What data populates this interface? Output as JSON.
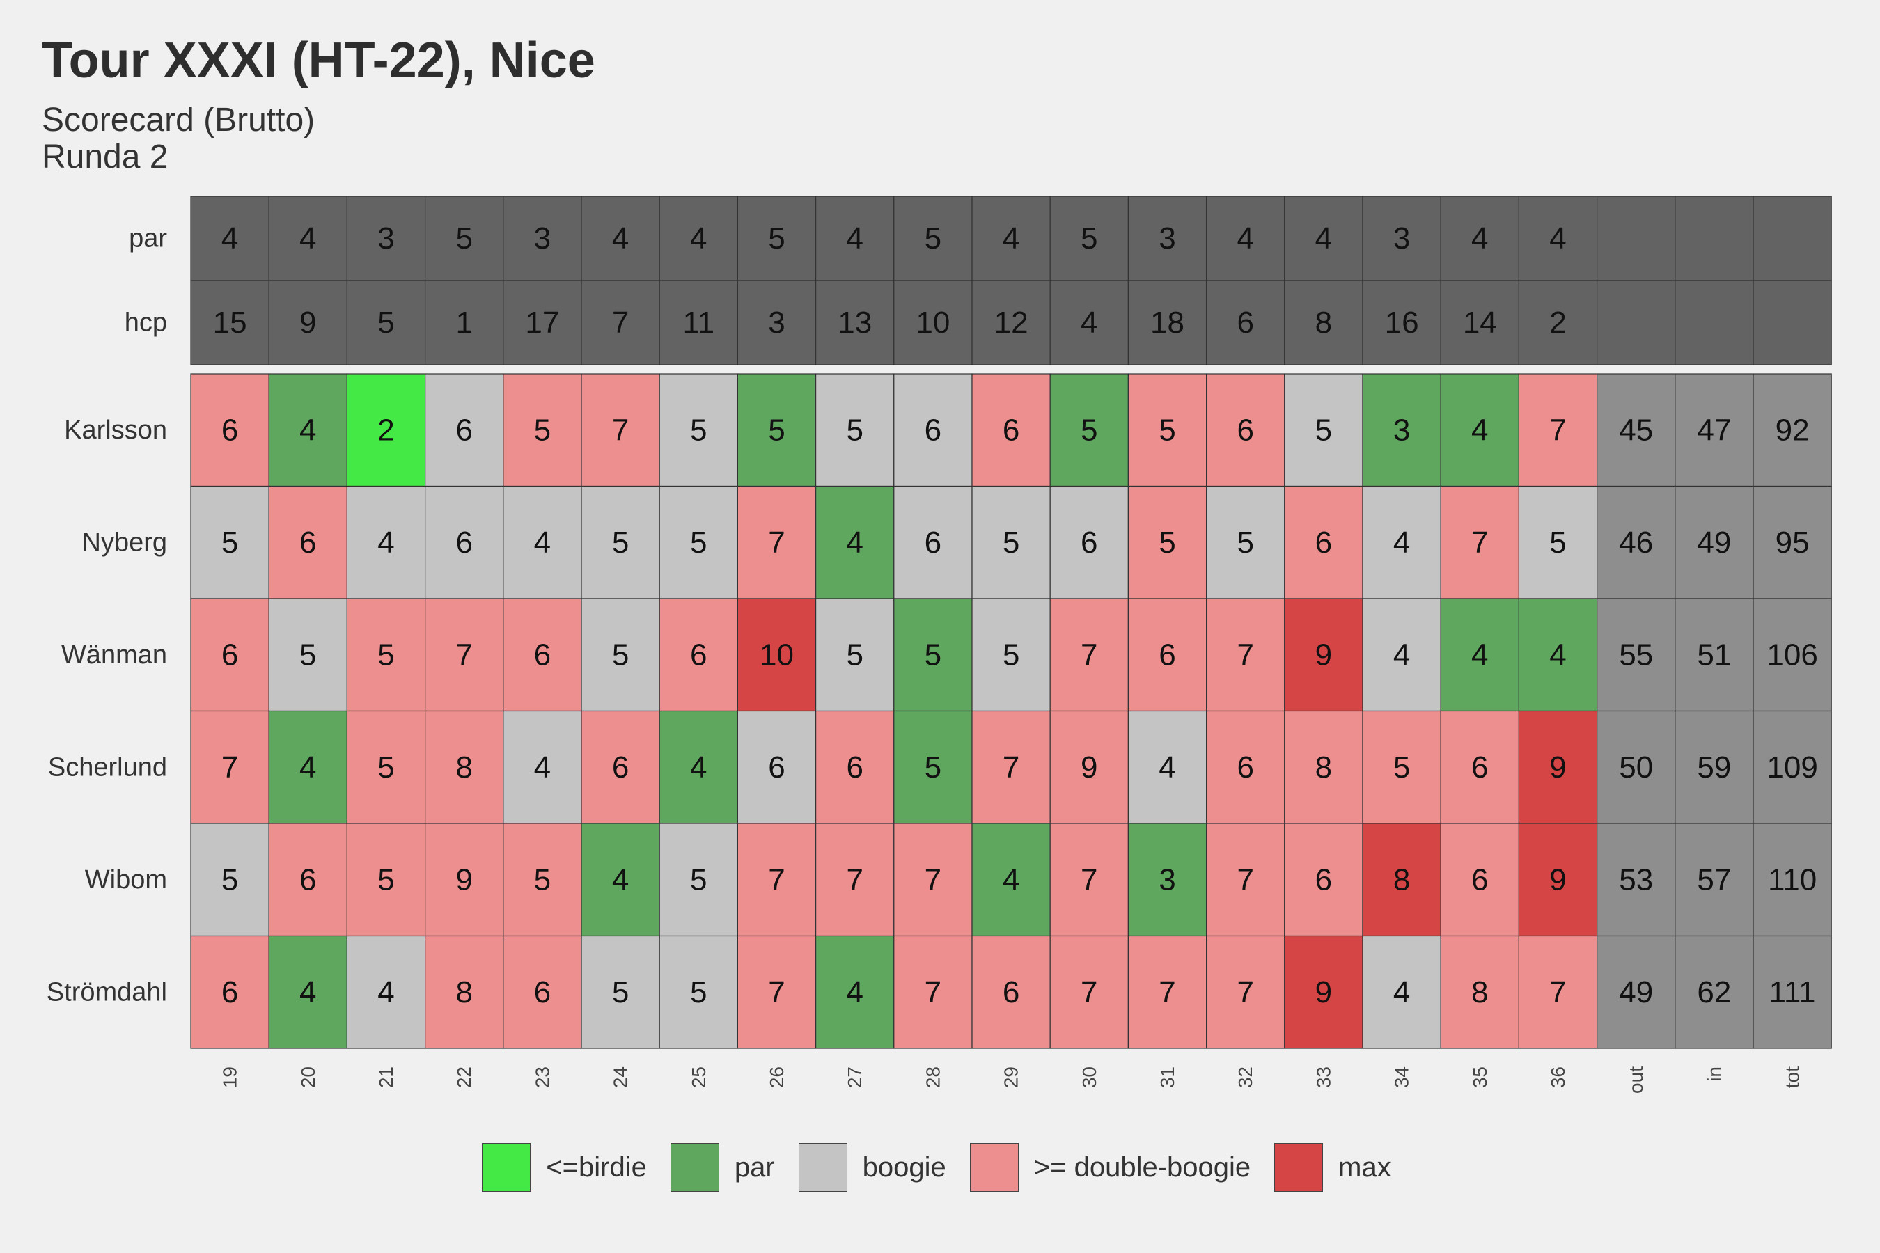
{
  "title": "Tour XXXI (HT-22), Nice",
  "subtitle_1": "Scorecard (Brutto)",
  "subtitle_2": "Runda 2",
  "colors": {
    "background": "#f0f0f0",
    "header_cell": "#636363",
    "total_cell": "#8e8e8e",
    "birdie": "#45e945",
    "par": "#5fa65f",
    "boogie": "#c4c4c4",
    "double_boogie": "#ee8f8f",
    "max": "#d64545"
  },
  "legend": [
    {
      "key": "birdie",
      "label": "<=birdie"
    },
    {
      "key": "par",
      "label": "par"
    },
    {
      "key": "boogie",
      "label": "boogie"
    },
    {
      "key": "double_boogie",
      "label": ">= double-boogie"
    },
    {
      "key": "max",
      "label": "max"
    }
  ],
  "chart_data": {
    "type": "table",
    "columns": [
      "19",
      "20",
      "21",
      "22",
      "23",
      "24",
      "25",
      "26",
      "27",
      "28",
      "29",
      "30",
      "31",
      "32",
      "33",
      "34",
      "35",
      "36",
      "out",
      "in",
      "tot"
    ],
    "header_rows": [
      {
        "label": "par",
        "values": [
          "4",
          "4",
          "3",
          "5",
          "3",
          "4",
          "4",
          "5",
          "4",
          "5",
          "4",
          "5",
          "3",
          "4",
          "4",
          "3",
          "4",
          "4",
          "",
          "",
          ""
        ]
      },
      {
        "label": "hcp",
        "values": [
          "15",
          "9",
          "5",
          "1",
          "17",
          "7",
          "11",
          "3",
          "13",
          "10",
          "12",
          "4",
          "18",
          "6",
          "8",
          "16",
          "14",
          "2",
          "",
          "",
          ""
        ]
      }
    ],
    "players": [
      {
        "name": "Karlsson",
        "scores": [
          6,
          4,
          2,
          6,
          5,
          7,
          5,
          5,
          5,
          6,
          6,
          5,
          5,
          6,
          5,
          3,
          4,
          7
        ],
        "categories": [
          "double_boogie",
          "par",
          "birdie",
          "boogie",
          "double_boogie",
          "double_boogie",
          "boogie",
          "par",
          "boogie",
          "boogie",
          "double_boogie",
          "par",
          "double_boogie",
          "double_boogie",
          "boogie",
          "par",
          "par",
          "double_boogie"
        ],
        "out": 45,
        "in": 47,
        "tot": 92
      },
      {
        "name": "Nyberg",
        "scores": [
          5,
          6,
          4,
          6,
          4,
          5,
          5,
          7,
          4,
          6,
          5,
          6,
          5,
          5,
          6,
          4,
          7,
          5
        ],
        "categories": [
          "boogie",
          "double_boogie",
          "boogie",
          "boogie",
          "boogie",
          "boogie",
          "boogie",
          "double_boogie",
          "par",
          "boogie",
          "boogie",
          "boogie",
          "double_boogie",
          "boogie",
          "double_boogie",
          "boogie",
          "double_boogie",
          "boogie"
        ],
        "out": 46,
        "in": 49,
        "tot": 95
      },
      {
        "name": "Wänman",
        "scores": [
          6,
          5,
          5,
          7,
          6,
          5,
          6,
          10,
          5,
          5,
          5,
          7,
          6,
          7,
          9,
          4,
          4,
          4
        ],
        "categories": [
          "double_boogie",
          "boogie",
          "double_boogie",
          "double_boogie",
          "double_boogie",
          "boogie",
          "double_boogie",
          "max",
          "boogie",
          "par",
          "boogie",
          "double_boogie",
          "double_boogie",
          "double_boogie",
          "max",
          "boogie",
          "par",
          "par"
        ],
        "out": 55,
        "in": 51,
        "tot": 106
      },
      {
        "name": "Scherlund",
        "scores": [
          7,
          4,
          5,
          8,
          4,
          6,
          4,
          6,
          6,
          5,
          7,
          9,
          4,
          6,
          8,
          5,
          6,
          9
        ],
        "categories": [
          "double_boogie",
          "par",
          "double_boogie",
          "double_boogie",
          "boogie",
          "double_boogie",
          "par",
          "boogie",
          "double_boogie",
          "par",
          "double_boogie",
          "double_boogie",
          "boogie",
          "double_boogie",
          "double_boogie",
          "double_boogie",
          "double_boogie",
          "max"
        ],
        "out": 50,
        "in": 59,
        "tot": 109
      },
      {
        "name": "Wibom",
        "scores": [
          5,
          6,
          5,
          9,
          5,
          4,
          5,
          7,
          7,
          7,
          4,
          7,
          3,
          7,
          6,
          8,
          6,
          9
        ],
        "categories": [
          "boogie",
          "double_boogie",
          "double_boogie",
          "double_boogie",
          "double_boogie",
          "par",
          "boogie",
          "double_boogie",
          "double_boogie",
          "double_boogie",
          "par",
          "double_boogie",
          "par",
          "double_boogie",
          "double_boogie",
          "max",
          "double_boogie",
          "max"
        ],
        "out": 53,
        "in": 57,
        "tot": 110
      },
      {
        "name": "Strömdahl",
        "scores": [
          6,
          4,
          4,
          8,
          6,
          5,
          5,
          7,
          4,
          7,
          6,
          7,
          7,
          7,
          9,
          4,
          8,
          7
        ],
        "categories": [
          "double_boogie",
          "par",
          "boogie",
          "double_boogie",
          "double_boogie",
          "boogie",
          "boogie",
          "double_boogie",
          "par",
          "double_boogie",
          "double_boogie",
          "double_boogie",
          "double_boogie",
          "double_boogie",
          "max",
          "boogie",
          "double_boogie",
          "double_boogie"
        ],
        "out": 49,
        "in": 62,
        "tot": 111
      }
    ]
  }
}
